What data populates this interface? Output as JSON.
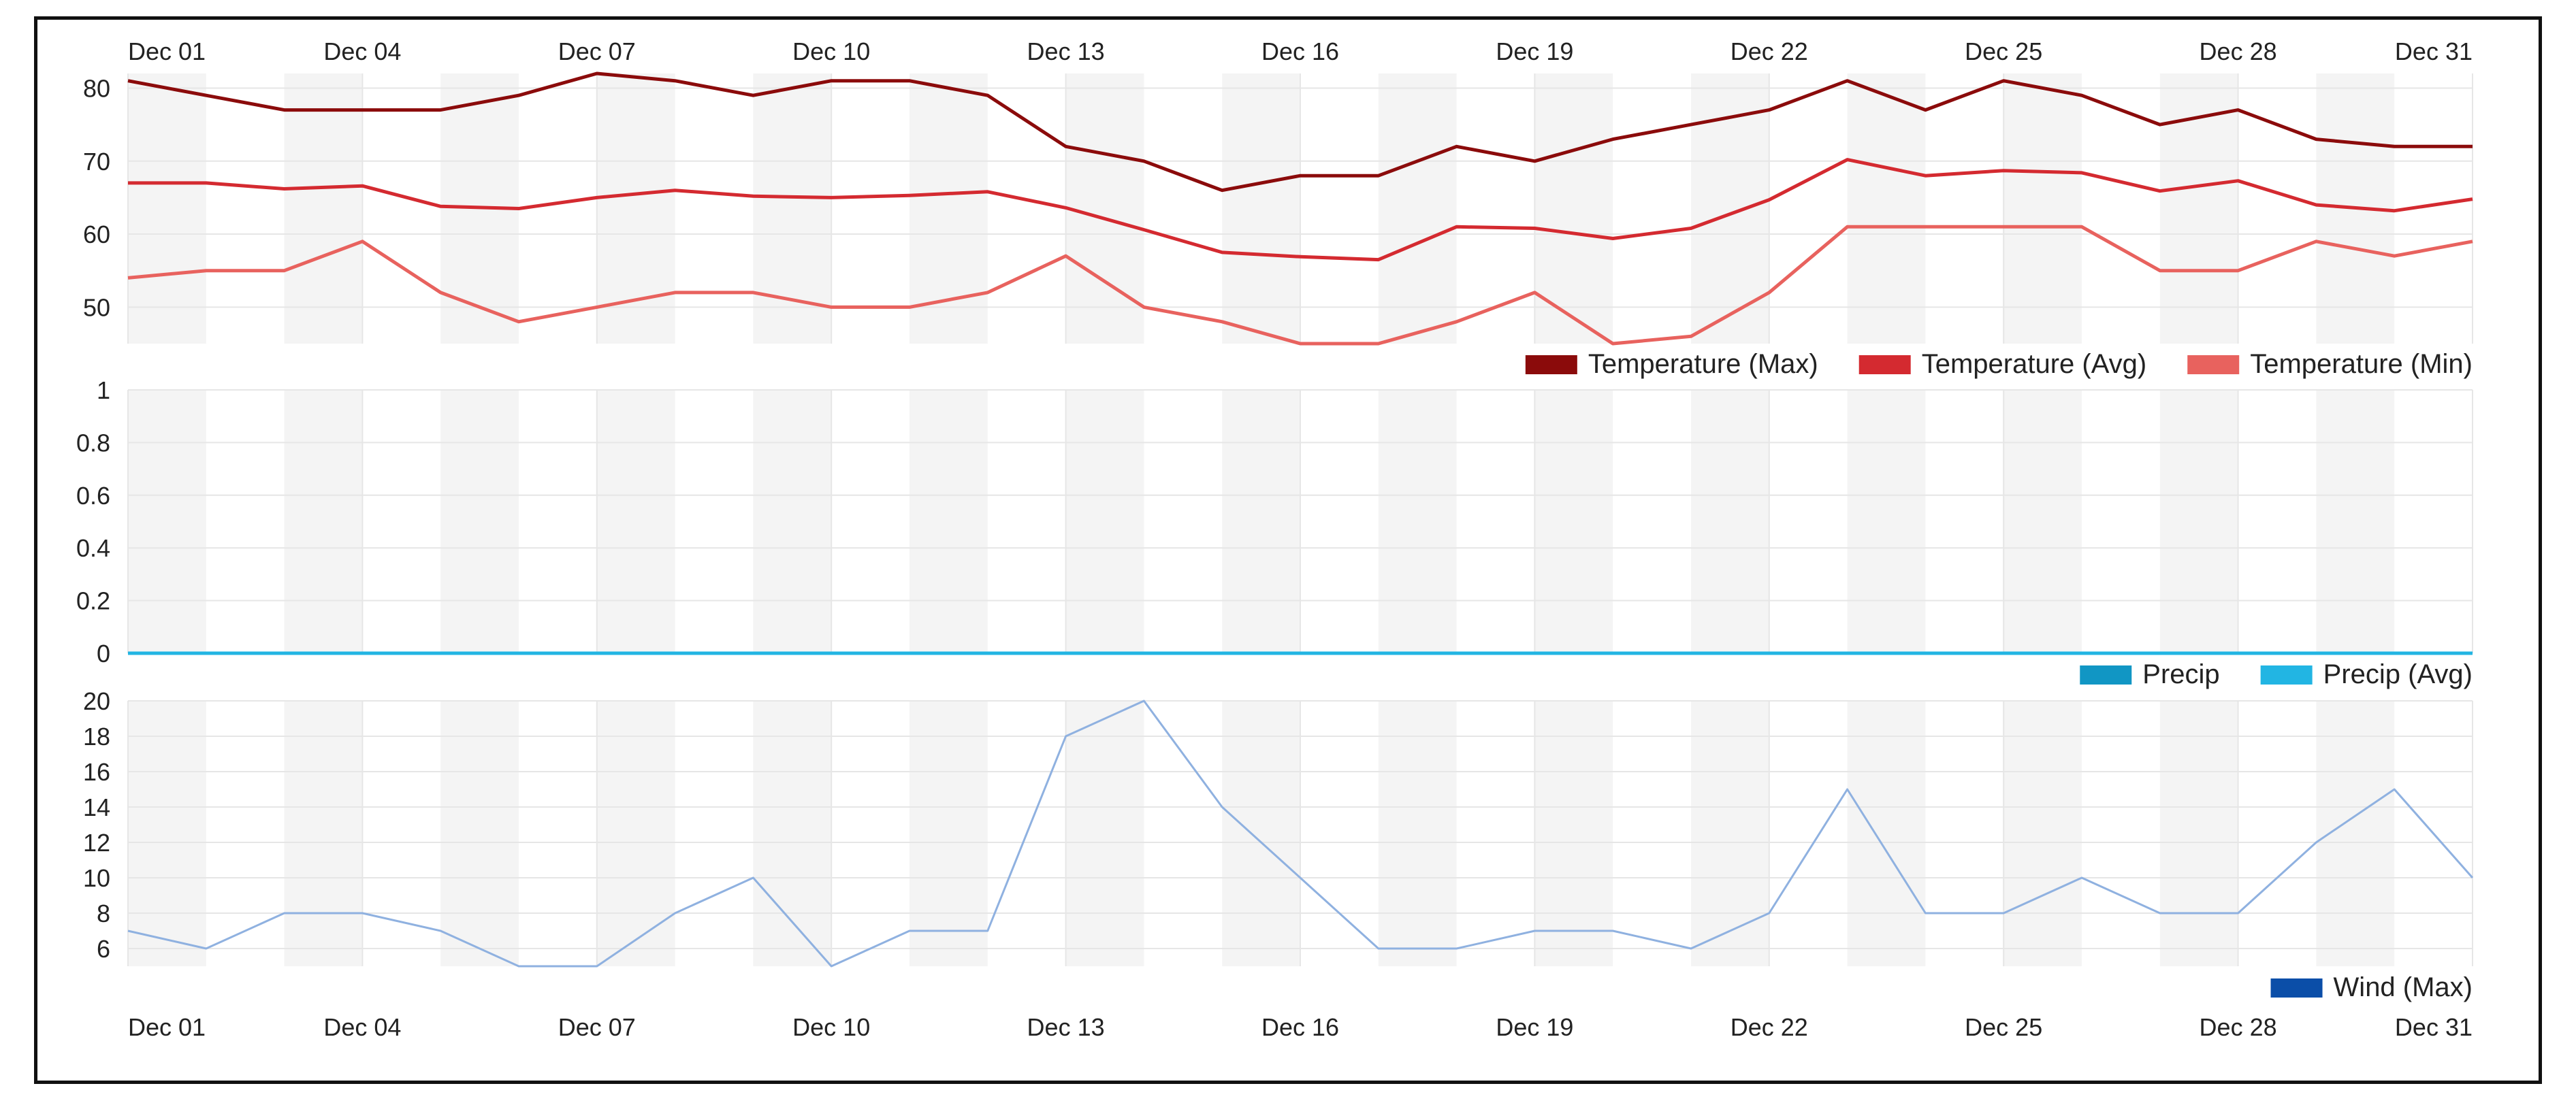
{
  "x_labels_top": [
    "Dec 01",
    "Dec 04",
    "Dec 07",
    "Dec 10",
    "Dec 13",
    "Dec 16",
    "Dec 19",
    "Dec 22",
    "Dec 25",
    "Dec 28",
    "Dec 31"
  ],
  "x_labels_bottom": [
    "Dec 01",
    "Dec 04",
    "Dec 07",
    "Dec 10",
    "Dec 13",
    "Dec 16",
    "Dec 19",
    "Dec 22",
    "Dec 25",
    "Dec 28",
    "Dec 31"
  ],
  "colors": {
    "temp_max": "#8b0b0b",
    "temp_avg": "#d42a30",
    "temp_min": "#e8625e",
    "precip": "#1196c4",
    "precip_avg": "#22b5e3",
    "wind_max": "#0b4ea8",
    "wind_line": "#8fb1e0",
    "band": "#f4f4f4",
    "grid": "#e6e6e6"
  },
  "chart_data": [
    {
      "type": "line",
      "x": [
        "Dec 01",
        "Dec 02",
        "Dec 03",
        "Dec 04",
        "Dec 05",
        "Dec 06",
        "Dec 07",
        "Dec 08",
        "Dec 09",
        "Dec 10",
        "Dec 11",
        "Dec 12",
        "Dec 13",
        "Dec 14",
        "Dec 15",
        "Dec 16",
        "Dec 17",
        "Dec 18",
        "Dec 19",
        "Dec 20",
        "Dec 21",
        "Dec 22",
        "Dec 23",
        "Dec 24",
        "Dec 25",
        "Dec 26",
        "Dec 27",
        "Dec 28",
        "Dec 29",
        "Dec 30",
        "Dec 31"
      ],
      "yticks": [
        50,
        60,
        70,
        80
      ],
      "ylim": [
        45,
        82
      ],
      "legend_position": "bottom-right",
      "series": [
        {
          "name": "Temperature (Max)",
          "color_key": "temp_max",
          "values": [
            81,
            79,
            77,
            77,
            77,
            79,
            82,
            81,
            79,
            81,
            81,
            79,
            72,
            70,
            66,
            68,
            68,
            72,
            70,
            73,
            75,
            77,
            81,
            77,
            81,
            79,
            75,
            77,
            73,
            72,
            72
          ]
        },
        {
          "name": "Temperature (Avg)",
          "color_key": "temp_avg",
          "values": [
            67,
            67,
            66.2,
            66.6,
            63.8,
            63.5,
            65,
            66,
            65.2,
            65,
            65.3,
            65.8,
            63.6,
            60.6,
            57.5,
            56.9,
            56.5,
            61,
            60.8,
            59.4,
            60.8,
            64.7,
            70.2,
            68,
            68.7,
            68.4,
            65.9,
            67.3,
            64,
            63.2,
            64.8
          ]
        },
        {
          "name": "Temperature (Min)",
          "color_key": "temp_min",
          "values": [
            54,
            55,
            55,
            59,
            52,
            48,
            50,
            52,
            52,
            50,
            50,
            52,
            57,
            50,
            48,
            45,
            45,
            48,
            52,
            45,
            46,
            52,
            61,
            61,
            61,
            61,
            55,
            55,
            59,
            57,
            59
          ]
        }
      ]
    },
    {
      "type": "line",
      "yticks": [
        0,
        0.2,
        0.4,
        0.6,
        0.8,
        1
      ],
      "ytick_labels": [
        "0",
        "0.2",
        "0.4",
        "0.6",
        "0.8",
        "1"
      ],
      "ylim": [
        0,
        1
      ],
      "legend_position": "bottom-right",
      "series": [
        {
          "name": "Precip",
          "color_key": "precip",
          "values": [
            0,
            0,
            0,
            0,
            0,
            0,
            0,
            0,
            0,
            0,
            0,
            0,
            0,
            0,
            0,
            0,
            0,
            0,
            0,
            0,
            0,
            0,
            0,
            0,
            0,
            0,
            0,
            0,
            0,
            0,
            0
          ]
        },
        {
          "name": "Precip (Avg)",
          "color_key": "precip_avg",
          "values": [
            0,
            0,
            0,
            0,
            0,
            0,
            0,
            0,
            0,
            0,
            0,
            0,
            0,
            0,
            0,
            0,
            0,
            0,
            0,
            0,
            0,
            0,
            0,
            0,
            0,
            0,
            0,
            0,
            0,
            0,
            0
          ]
        }
      ]
    },
    {
      "type": "line",
      "yticks": [
        6,
        8,
        10,
        12,
        14,
        16,
        18,
        20
      ],
      "ylim": [
        5,
        20
      ],
      "legend_position": "bottom-right",
      "series": [
        {
          "name": "Wind (Max)",
          "color_key": "wind_max",
          "line_color_key": "wind_line",
          "values": [
            7,
            6,
            8,
            8,
            7,
            5,
            5,
            8,
            10,
            5,
            7,
            7,
            18,
            20,
            14,
            10,
            6,
            6,
            7,
            7,
            6,
            8,
            15,
            8,
            8,
            10,
            8,
            8,
            12,
            15,
            10
          ]
        }
      ]
    }
  ]
}
